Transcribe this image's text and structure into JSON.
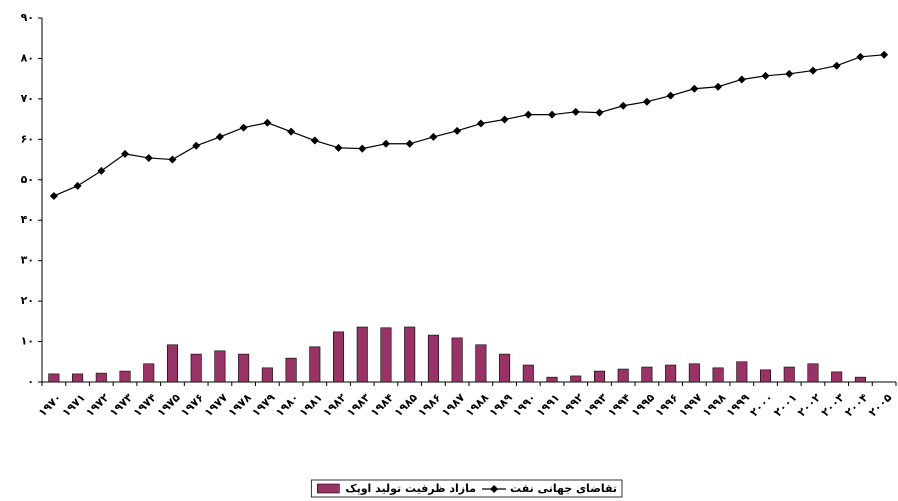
{
  "chart_data": {
    "type": "combo",
    "categories": [
      "۱۹۷۰",
      "۱۹۷۱",
      "۱۹۷۲",
      "۱۹۷۳",
      "۱۹۷۴",
      "۱۹۷۵",
      "۱۹۷۶",
      "۱۹۷۷",
      "۱۹۷۸",
      "۱۹۷۹",
      "۱۹۸۰",
      "۱۹۸۱",
      "۱۹۸۲",
      "۱۹۸۳",
      "۱۹۸۴",
      "۱۹۸۵",
      "۱۹۸۶",
      "۱۹۸۷",
      "۱۹۸۸",
      "۱۹۸۹",
      "۱۹۹۰",
      "۱۹۹۱",
      "۱۹۹۲",
      "۱۹۹۳",
      "۱۹۹۴",
      "۱۹۹۵",
      "۱۹۹۶",
      "۱۹۹۷",
      "۱۹۹۸",
      "۱۹۹۹",
      "۲۰۰۰",
      "۲۰۰۱",
      "۲۰۰۲",
      "۲۰۰۳",
      "۲۰۰۴",
      "۲۰۰۵"
    ],
    "series": [
      {
        "name": "تقاضای جهانی نفت",
        "type": "line",
        "color": "#000000",
        "values": [
          46,
          48.5,
          52.2,
          56.4,
          55.4,
          55,
          58.4,
          60.6,
          62.9,
          64.1,
          61.9,
          59.7,
          57.9,
          57.7,
          58.9,
          58.9,
          60.6,
          62.1,
          63.9,
          64.9,
          66.1,
          66.1,
          66.8,
          66.6,
          68.3,
          69.3,
          70.8,
          72.5,
          73,
          74.8,
          75.7,
          76.2,
          77,
          78.2,
          80.4,
          80.9
        ]
      },
      {
        "name": "مازاد ظرفیت تولید اوپک",
        "type": "bar",
        "color": "#993366",
        "values": [
          2,
          2,
          2.2,
          2.7,
          4.5,
          9.2,
          6.9,
          7.7,
          6.9,
          3.5,
          5.9,
          8.7,
          12.4,
          13.6,
          13.4,
          13.6,
          11.6,
          10.9,
          9.2,
          6.9,
          4.2,
          1.2,
          1.5,
          2.7,
          3.2,
          3.7,
          4.2,
          4.5,
          3.5,
          5,
          3,
          3.7,
          4.5,
          2.5,
          1.2,
          null
        ]
      }
    ],
    "ylim": [
      0,
      90
    ],
    "yticks": [
      {
        "value": 0,
        "label": "۰"
      },
      {
        "value": 10,
        "label": "۱۰"
      },
      {
        "value": 20,
        "label": "۲۰"
      },
      {
        "value": 30,
        "label": "۳۰"
      },
      {
        "value": 40,
        "label": "۴۰"
      },
      {
        "value": 50,
        "label": "۵۰"
      },
      {
        "value": 60,
        "label": "۶۰"
      },
      {
        "value": 70,
        "label": "۷۰"
      },
      {
        "value": 80,
        "label": "۸۰"
      },
      {
        "value": 90,
        "label": "۹۰"
      }
    ],
    "grid": false
  }
}
